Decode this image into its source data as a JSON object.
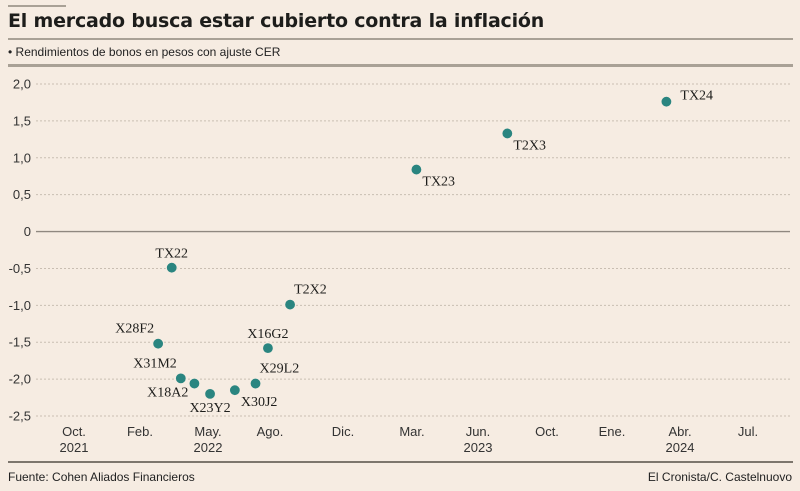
{
  "header": {
    "title": "El mercado busca estar cubierto contra la inflación",
    "subtitle": "• Rendimientos de bonos en pesos con ajuste CER"
  },
  "footer": {
    "source": "Fuente: Cohen Aliados Financieros",
    "credit": "El Cronista/C. Castelnuovo"
  },
  "colors": {
    "point": "#2a8580",
    "background": "#f6ece2",
    "rule": "#a9a196",
    "grid": "#c9beb2",
    "zero_line": "#8f8880"
  },
  "chart_data": {
    "type": "scatter",
    "title": "El mercado busca estar cubierto contra la inflación",
    "subtitle": "Rendimientos de bonos en pesos con ajuste CER",
    "xlabel": "",
    "ylabel": "",
    "ylim": [
      -2.5,
      2.0
    ],
    "y_ticks": [
      {
        "value": 2.0,
        "label": "2,0"
      },
      {
        "value": 1.5,
        "label": "1,5"
      },
      {
        "value": 1.0,
        "label": "1,0"
      },
      {
        "value": 0.5,
        "label": "0,5"
      },
      {
        "value": 0,
        "label": "0"
      },
      {
        "value": -0.5,
        "label": "-0,5"
      },
      {
        "value": -1.0,
        "label": "-1,0"
      },
      {
        "value": -1.5,
        "label": "-1,5"
      },
      {
        "value": -2.0,
        "label": "-2,0"
      },
      {
        "value": -2.5,
        "label": "-2,5"
      }
    ],
    "x_unit": "months since Oct. 2021",
    "xlim": [
      -3,
      36
    ],
    "x_ticks": [
      {
        "value": 0,
        "label": "Oct.",
        "year": "2021"
      },
      {
        "value": 4,
        "label": "Feb.",
        "year": ""
      },
      {
        "value": 7,
        "label": "May.",
        "year": "2022"
      },
      {
        "value": 10,
        "label": "Ago.",
        "year": ""
      },
      {
        "value": 14,
        "label": "Dic.",
        "year": ""
      },
      {
        "value": 17,
        "label": "Mar.",
        "year": ""
      },
      {
        "value": 20,
        "label": "Jun.",
        "year": "2023"
      },
      {
        "value": 24,
        "label": "Oct.",
        "year": ""
      },
      {
        "value": 27,
        "label": "Ene.",
        "year": ""
      },
      {
        "value": 30,
        "label": "Abr.",
        "year": "2024"
      },
      {
        "value": 33,
        "label": "Jul.",
        "year": ""
      }
    ],
    "grid": true,
    "legend": "none",
    "points": [
      {
        "name": "TX22",
        "x": 5.4,
        "y": -0.49,
        "label_pos": "above"
      },
      {
        "name": "X28F2",
        "x": 4.8,
        "y": -1.52,
        "label_pos": "above-left"
      },
      {
        "name": "X31M2",
        "x": 5.8,
        "y": -1.99,
        "label_pos": "above-left"
      },
      {
        "name": "X18A2",
        "x": 6.4,
        "y": -2.06,
        "label_pos": "below-left"
      },
      {
        "name": "X23Y2",
        "x": 7.1,
        "y": -2.2,
        "label_pos": "below"
      },
      {
        "name": "X30J2",
        "x": 8.3,
        "y": -2.15,
        "label_pos": "below-right"
      },
      {
        "name": "X29L2",
        "x": 9.3,
        "y": -2.06,
        "label_pos": "above-right"
      },
      {
        "name": "X16G2",
        "x": 9.9,
        "y": -1.58,
        "label_pos": "above"
      },
      {
        "name": "T2X2",
        "x": 11.1,
        "y": -0.99,
        "label_pos": "above-right"
      },
      {
        "name": "TX23",
        "x": 17.2,
        "y": 0.84,
        "label_pos": "below-right"
      },
      {
        "name": "T2X3",
        "x": 21.7,
        "y": 1.33,
        "label_pos": "below-right"
      },
      {
        "name": "TX24",
        "x": 29.4,
        "y": 1.76,
        "label_pos": "right"
      }
    ]
  }
}
